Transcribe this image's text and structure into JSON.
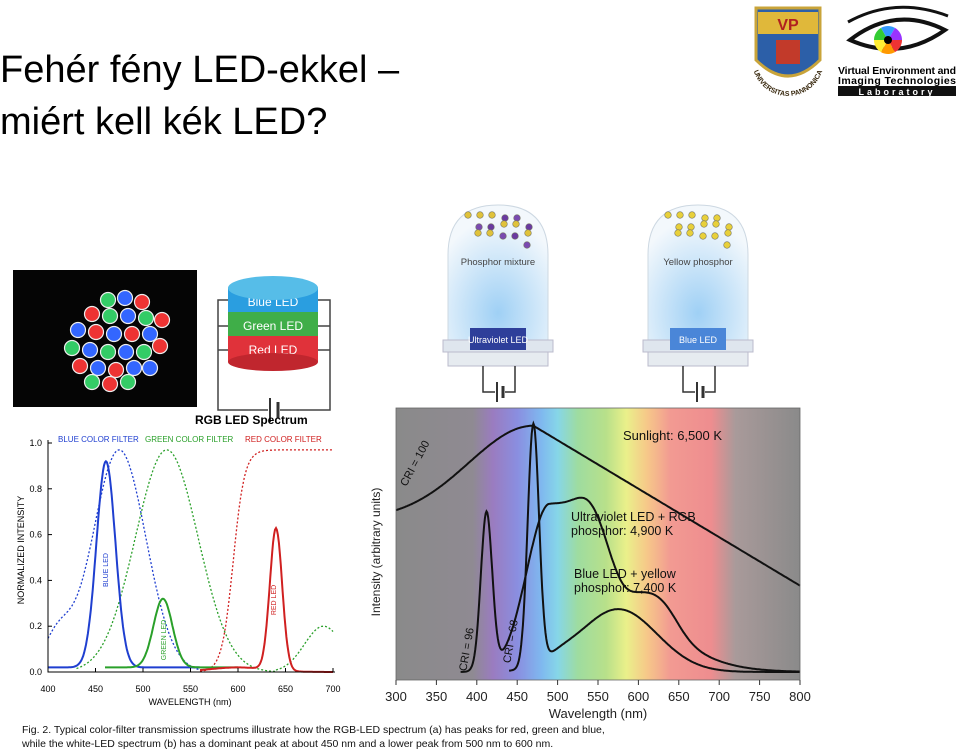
{
  "title": {
    "lines": [
      "Fehér fény LED-ekkel –",
      "miért kell kék LED?"
    ]
  },
  "logos": {
    "crest": {
      "monogram": "VP",
      "ring": "UNIVERSITAS PANNONICA"
    },
    "lab": {
      "lines": [
        "Virtual Environment and",
        "Imaging Technologies",
        "Laboratory"
      ]
    }
  },
  "rgb_diagram": {
    "layers": [
      "Blue LED",
      "Green LED",
      "Red LED"
    ]
  },
  "bulbs": [
    {
      "phosphor": "Phosphor mixture",
      "led": "Ultraviolet LED"
    },
    {
      "phosphor": "Yellow phosphor",
      "led": "Blue LED"
    }
  ],
  "left_chart": {
    "title": "RGB LED Spectrum",
    "filters": [
      "BLUE COLOR FILTER",
      "GREEN COLOR FILTER",
      "RED COLOR FILTER"
    ],
    "led_labels": [
      "BLUE LED",
      "GREEN LED",
      "RED LED"
    ],
    "y_label": "NORMALIZED INTENSITY",
    "x_label": "WAVELENGTH (nm)",
    "yticks": [
      "0.0",
      "0.2",
      "0.4",
      "0.6",
      "0.8",
      "1.0"
    ],
    "xticks": [
      "400",
      "450",
      "500",
      "550",
      "600",
      "650",
      "700"
    ]
  },
  "right_chart": {
    "y_label": "Intensity (arbitrary units)",
    "x_label": "Wavelength (nm)",
    "xticks": [
      "300",
      "350",
      "400",
      "450",
      "500",
      "550",
      "600",
      "650",
      "700",
      "750",
      "800"
    ],
    "annotations": {
      "sunlight": "Sunlight: 6,500 K",
      "uv": [
        "Ultraviolet LED + RGB",
        "phosphor: 4,900 K"
      ],
      "blue": [
        "Blue LED + yellow",
        "phosphor: 7,400 K"
      ],
      "cri": [
        "CRI = 100",
        "CRI = 96",
        "CRI = 68"
      ]
    }
  },
  "caption": {
    "lines": [
      "Fig. 2. Typical color-filter transmission spectrums illustrate how the RGB-LED spectrum (a) has peaks for red, green and blue,",
      "while the white-LED spectrum (b) has a dominant peak at about 450 nm and a lower peak from 500 nm to 600 nm."
    ]
  }
}
